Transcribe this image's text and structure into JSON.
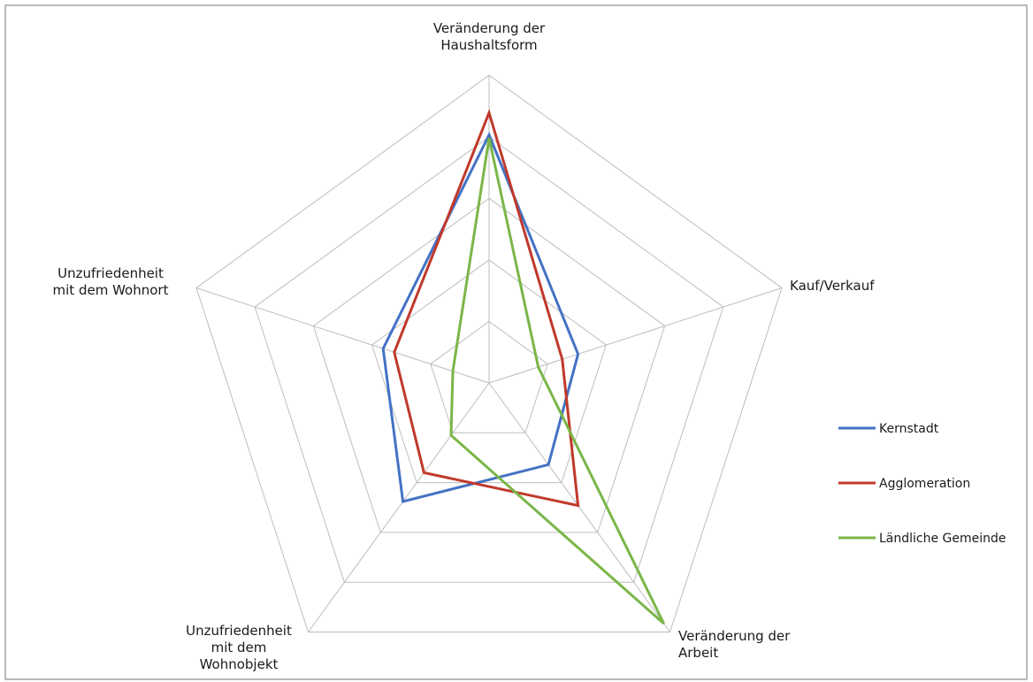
{
  "chart_data": {
    "type": "radar",
    "title": "",
    "axes": [
      "Veränderung der Haushaltsform",
      "Kauf/Verkauf",
      "Veränderung der Arbeit",
      "Unzufriedenheit mit dem Wohnobjekt",
      "Unzufriedenheit mit dem Wohnort"
    ],
    "axis_label_lines": [
      [
        "Veränderung der",
        "Haushaltsform"
      ],
      [
        "Kauf/Verkauf"
      ],
      [
        "Veränderung der",
        "Arbeit"
      ],
      [
        "Unzufriedenheit",
        "mit dem",
        "Wohnobjekt"
      ],
      [
        "Unzufriedenheit",
        "mit dem Wohnort"
      ]
    ],
    "scale": {
      "min": 0,
      "max": 5,
      "rings": 5
    },
    "grid": true,
    "legend_position": "right",
    "series": [
      {
        "name": "Kernstadt",
        "color": "#4472c4",
        "values": [
          4.03,
          1.52,
          1.64,
          2.38,
          1.81
        ]
      },
      {
        "name": "Agglomeration",
        "color": "#c0392b",
        "values": [
          4.39,
          1.25,
          2.46,
          1.8,
          1.62
        ]
      },
      {
        "name": "Ländliche Gemeinde",
        "color": "#7ab648",
        "values": [
          3.98,
          0.84,
          4.83,
          1.05,
          0.62
        ]
      }
    ]
  }
}
